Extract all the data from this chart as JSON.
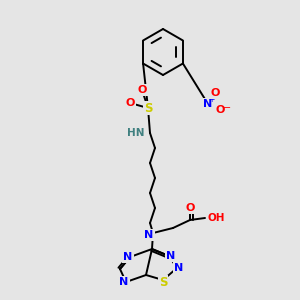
{
  "bg_color": "#e5e5e5",
  "atom_colors": {
    "C": "#000000",
    "N": "#0000ff",
    "O": "#ff0000",
    "S": "#cccc00",
    "H": "#408080"
  },
  "bond_color": "#000000",
  "bond_width": 1.4,
  "figsize": [
    3.0,
    3.0
  ],
  "dpi": 100
}
